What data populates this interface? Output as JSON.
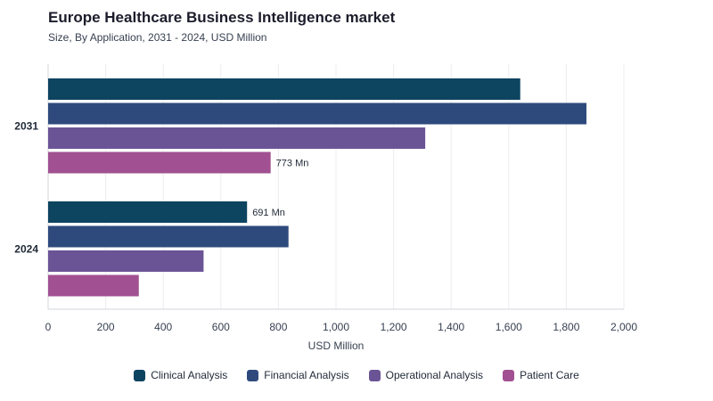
{
  "header": {
    "title": "Europe Healthcare Business Intelligence market",
    "subtitle": "Size, By Application, 2031 - 2024, USD Million"
  },
  "chart_data": {
    "type": "bar",
    "orientation": "horizontal",
    "categories": [
      "2031",
      "2024"
    ],
    "series": [
      {
        "name": "Clinical Analysis",
        "color": "#0d4460",
        "values": [
          1640,
          691
        ]
      },
      {
        "name": "Financial Analysis",
        "color": "#2e4a7d",
        "values": [
          1870,
          835
        ]
      },
      {
        "name": "Operational Analysis",
        "color": "#6b5496",
        "values": [
          1310,
          540
        ]
      },
      {
        "name": "Patient Care",
        "color": "#a15191",
        "values": [
          773,
          315
        ]
      }
    ],
    "data_labels": [
      {
        "category": "2031",
        "series": "Patient Care",
        "text": "773 Mn"
      },
      {
        "category": "2024",
        "series": "Clinical Analysis",
        "text": "691 Mn"
      }
    ],
    "xlabel": "USD Million",
    "ylabel": "",
    "xlim": [
      0,
      2000
    ],
    "xticks": [
      "0",
      "200",
      "400",
      "600",
      "800",
      "1,000",
      "1,200",
      "1,400",
      "1,600",
      "1,800",
      "2,000"
    ],
    "grid": true,
    "legend_position": "bottom"
  }
}
